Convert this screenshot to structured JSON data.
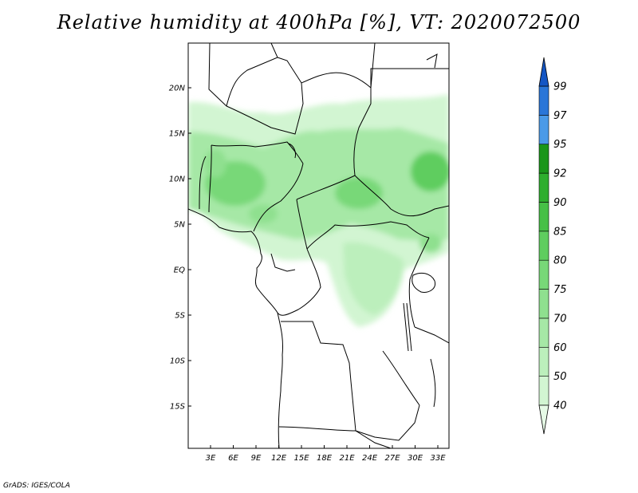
{
  "title": "Relative humidity at 400hPa [%], VT: 2020072500",
  "credit": "GrADS: IGES/COLA",
  "map": {
    "lat_labels": [
      "20N",
      "15N",
      "10N",
      "5N",
      "EQ",
      "5S",
      "10S",
      "15S"
    ],
    "lon_labels": [
      "3E",
      "6E",
      "9E",
      "12E",
      "15E",
      "18E",
      "21E",
      "24E",
      "27E",
      "30E",
      "33E"
    ]
  },
  "colorbar": {
    "levels": [
      "40",
      "50",
      "60",
      "70",
      "75",
      "80",
      "85",
      "90",
      "92",
      "95",
      "97",
      "99"
    ],
    "colors": [
      "#e6fae6",
      "#d2f5d2",
      "#bcefbc",
      "#a6e8a6",
      "#8fe08f",
      "#78d878",
      "#5fcd5f",
      "#46c046",
      "#2eae2e",
      "#1a961a",
      "#4a9ae8",
      "#2a76d8",
      "#1456c4"
    ]
  }
}
